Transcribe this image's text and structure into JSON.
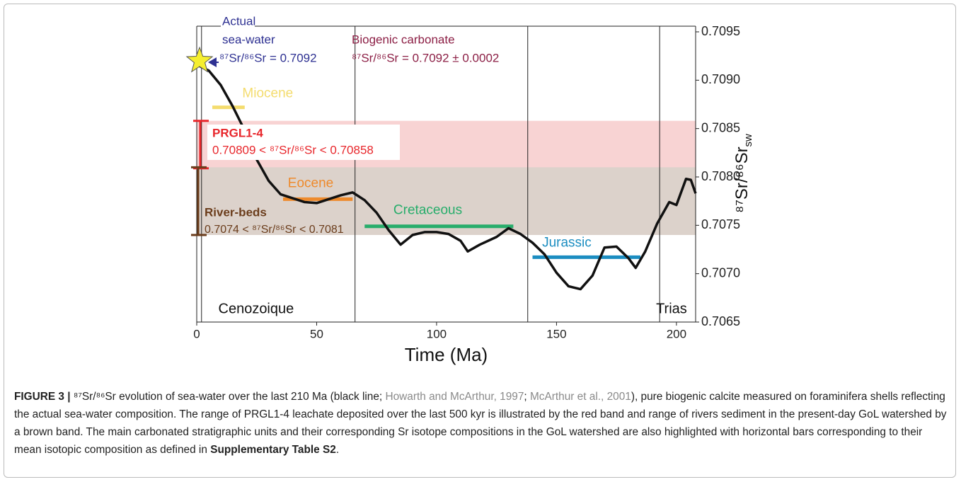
{
  "chart_data": {
    "type": "line",
    "xlabel": "Time (Ma)",
    "ylabel": {
      "text": "⁸⁷Sr/⁸⁶Sr",
      "subscript": "sw"
    },
    "xlim": [
      0,
      208
    ],
    "ylim": [
      0.7065,
      0.7095
    ],
    "xticks": [
      0,
      50,
      100,
      150,
      200
    ],
    "yticks": [
      0.7065,
      {
        "value": 0.707,
        "label": "0.7070"
      },
      0.7075,
      {
        "value": 0.708,
        "label": "0.7080"
      },
      0.7085,
      {
        "value": 0.709,
        "label": "0.7090"
      },
      0.7095
    ],
    "series": [
      {
        "color": "#111111",
        "x": [
          0,
          5,
          10,
          15,
          20,
          25,
          30,
          35,
          40,
          45,
          50,
          55,
          60,
          65,
          70,
          75,
          80,
          85,
          90,
          95,
          100,
          105,
          110,
          113,
          118,
          125,
          130,
          135,
          140,
          145,
          150,
          155,
          160,
          165,
          170,
          175,
          180,
          183,
          187,
          192,
          197,
          200,
          204,
          206,
          208
        ],
        "values": [
          0.70916,
          0.7091,
          0.70895,
          0.70873,
          0.70848,
          0.70818,
          0.70796,
          0.70782,
          0.70778,
          0.70774,
          0.70773,
          0.70777,
          0.70781,
          0.70784,
          0.70776,
          0.70763,
          0.70745,
          0.7073,
          0.7074,
          0.70743,
          0.70743,
          0.70741,
          0.70734,
          0.70723,
          0.7073,
          0.70738,
          0.70747,
          0.70741,
          0.70732,
          0.7072,
          0.70701,
          0.70687,
          0.70684,
          0.70698,
          0.70727,
          0.70728,
          0.70716,
          0.70706,
          0.70723,
          0.70752,
          0.70774,
          0.70771,
          0.70798,
          0.70797,
          0.70783
        ]
      }
    ],
    "bands": [
      {
        "name": "PRGL1-4",
        "formula": "0.70809 < ⁸⁷Sr/⁸⁶Sr < 0.70858",
        "range": [
          0.70809,
          0.70858
        ],
        "color": "#e8262b",
        "fill": "#f8d3d3"
      },
      {
        "name": "River-beds",
        "formula": "0.7074 < ⁸⁷Sr/⁸⁶Sr < 0.7081",
        "range": [
          0.7074,
          0.7081
        ],
        "color": "#6b3d1c",
        "fill": "#dcd2cb"
      }
    ],
    "units": [
      {
        "name": "Miocene",
        "color": "#f4dc6e",
        "value": 0.70872,
        "x": [
          6.5,
          20
        ]
      },
      {
        "name": "Eocene",
        "color": "#ee8a2c",
        "value": 0.70777,
        "x": [
          36,
          65
        ]
      },
      {
        "name": "Cretaceous",
        "color": "#27ad6b",
        "value": 0.70749,
        "x": [
          70,
          132
        ]
      },
      {
        "name": "Jurassic",
        "color": "#1b8dc1",
        "value": 0.70717,
        "x": [
          140,
          185
        ]
      }
    ],
    "boundaries": [
      2,
      66,
      138,
      193
    ],
    "periods": [
      {
        "name": "Cenozoique",
        "x": 9
      },
      {
        "name": "Trias",
        "x": 191.5
      }
    ],
    "actual_seawater": {
      "lines": [
        "Actual",
        "sea-water"
      ],
      "formula": "⁸⁷Sr/⁸⁶Sr = 0.7092",
      "x": 0,
      "value": 0.7092,
      "color": "#2e3192"
    },
    "biogenic": {
      "label": "Biogenic carbonate",
      "formula": "⁸⁷Sr/⁸⁶Sr = 0.7092 ± 0.0002",
      "color": "#8c1f45"
    }
  },
  "caption": [
    {
      "text": "FIGURE 3 | ",
      "style": "bold"
    },
    {
      "text": "⁸⁷Sr/⁸⁶Sr evolution of sea-water over the last 210 Ma (black line; ",
      "style": "normal"
    },
    {
      "text": "Howarth and McArthur, 1997",
      "style": "link"
    },
    {
      "text": "; ",
      "style": "normal"
    },
    {
      "text": "McArthur et al., 2001",
      "style": "link"
    },
    {
      "text": "), pure biogenic calcite measured on foraminifera shells reflecting the actual sea-water composition. The range of PRGL1-4 leachate deposited over the last 500 kyr is illustrated by the red band and range of rivers sediment in the present-day GoL watershed by a brown band. The main carbonated stratigraphic units and their corresponding Sr isotope compositions in the GoL watershed are also highlighted with horizontal bars corresponding to their mean isotopic composition as defined in ",
      "style": "normal"
    },
    {
      "text": "Supplementary Table S2",
      "style": "bold"
    },
    {
      "text": ".",
      "style": "normal"
    }
  ]
}
